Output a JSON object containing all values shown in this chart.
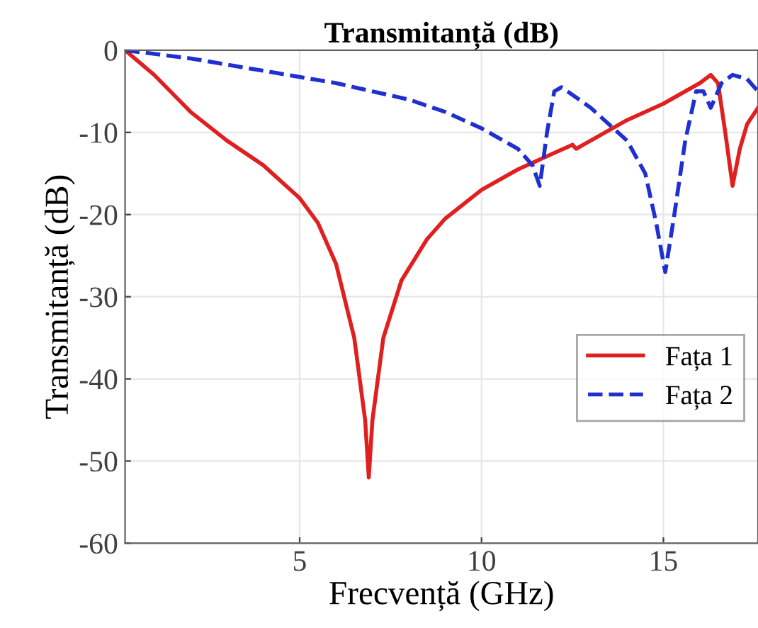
{
  "chart_data": {
    "type": "line",
    "title": "Transmitanță (dB)",
    "xlabel": "Frecvență (GHz)",
    "ylabel": "Transmitanță (dB)",
    "xlim": [
      0.2,
      17.6
    ],
    "xticks": [
      5,
      10,
      15
    ],
    "ylim": [
      -60,
      0
    ],
    "yticks": [
      -60,
      -50,
      -40,
      -30,
      -20,
      -10,
      0
    ],
    "grid": true,
    "legend": "bottom right",
    "series": [
      {
        "name": "Fața 1",
        "color": "#e02020",
        "line_style": "solid",
        "x": [
          0.2,
          1,
          2,
          3,
          4,
          5,
          5.5,
          6,
          6.5,
          6.8,
          6.9,
          7.0,
          7.3,
          7.8,
          8.5,
          9,
          10,
          11,
          12,
          12.5,
          12.6,
          12.8,
          13,
          14,
          15,
          16,
          16.3,
          16.5,
          16.7,
          16.9,
          17.1,
          17.3,
          17.6
        ],
        "values": [
          0,
          -3,
          -7.5,
          -11,
          -14,
          -18,
          -21,
          -26,
          -35,
          -45,
          -52,
          -45,
          -35,
          -28,
          -23,
          -20.5,
          -17,
          -14.5,
          -12.5,
          -11.5,
          -12,
          -11.5,
          -11,
          -8.5,
          -6.5,
          -4,
          -3,
          -4,
          -10,
          -16.5,
          -12,
          -9,
          -7
        ]
      },
      {
        "name": "Fața 2",
        "color": "#2030d0",
        "line_style": "dashed",
        "x": [
          0.2,
          2,
          4,
          6,
          8,
          9,
          10,
          11,
          11.4,
          11.6,
          11.8,
          12,
          12.2,
          13,
          14,
          14.5,
          14.8,
          15.05,
          15.3,
          15.6,
          15.9,
          16.1,
          16.3,
          16.6,
          16.9,
          17.3,
          17.6
        ],
        "values": [
          0,
          -1,
          -2.5,
          -4,
          -6,
          -7.5,
          -9.5,
          -12,
          -14,
          -16.5,
          -10,
          -5,
          -4.5,
          -7,
          -11,
          -15,
          -21,
          -27,
          -20,
          -11,
          -5,
          -5,
          -7,
          -4,
          -3,
          -3.5,
          -5
        ]
      }
    ]
  }
}
